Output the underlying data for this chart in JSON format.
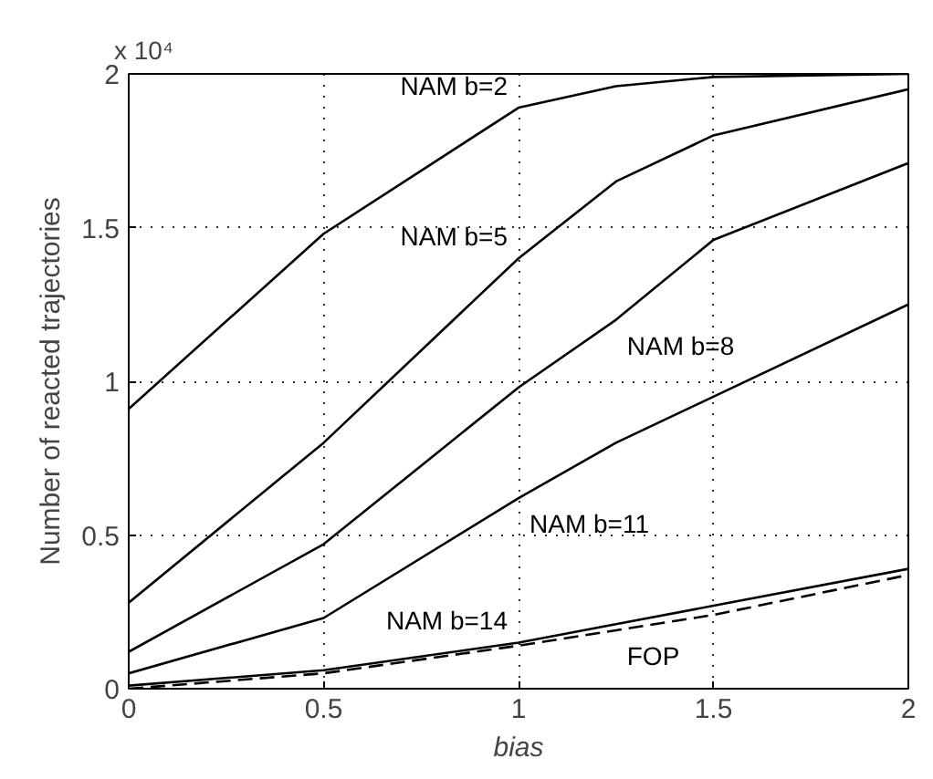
{
  "chart_data": {
    "type": "line",
    "xlabel": "bias",
    "ylabel": "Number of reacted trajectories",
    "annotations": [
      "x 10⁴"
    ],
    "x": [
      0,
      0.5,
      1,
      1.25,
      1.5,
      2
    ],
    "series": [
      {
        "name": "NAM b=2",
        "color": "#000000",
        "values": [
          0.91,
          1.48,
          1.89,
          1.96,
          1.99,
          2.0
        ]
      },
      {
        "name": "NAM b=5",
        "color": "#000000",
        "values": [
          0.28,
          0.8,
          1.4,
          1.65,
          1.8,
          1.95
        ]
      },
      {
        "name": "NAM b=8",
        "color": "#000000",
        "values": [
          0.12,
          0.47,
          0.98,
          1.2,
          1.46,
          1.71
        ]
      },
      {
        "name": "NAM b=11",
        "color": "#000000",
        "values": [
          0.05,
          0.23,
          0.62,
          0.8,
          0.95,
          1.25
        ]
      },
      {
        "name": "NAM b=14",
        "color": "#000000",
        "values": [
          0.01,
          0.06,
          0.15,
          0.21,
          0.27,
          0.39
        ]
      },
      {
        "name": "FOP",
        "color": "#000000",
        "values": [
          0.0,
          0.05,
          0.14,
          0.19,
          0.24,
          0.37
        ],
        "line_style": "dashed"
      }
    ],
    "xlim": [
      0,
      2
    ],
    "ylim": [
      0,
      2
    ],
    "xticks": [
      0,
      0.5,
      1,
      1.5,
      2
    ],
    "yticks": [
      0,
      0.5,
      1,
      1.5,
      2
    ],
    "grid": true,
    "legend": false,
    "line_style": "solid",
    "marker": "none"
  }
}
